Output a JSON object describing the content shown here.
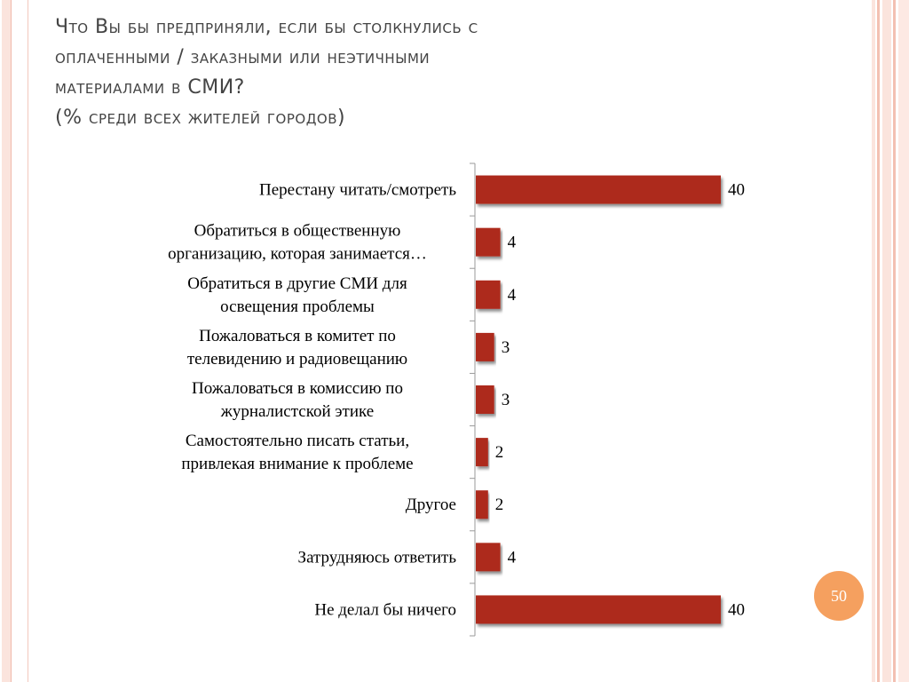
{
  "title": {
    "lines": [
      "Что Вы бы предприняли, если бы столкнулись с",
      "оплаченными / заказными или неэтичными",
      "материалами в СМИ?",
      "(% среди всех жителей городов)"
    ]
  },
  "page_number": "50",
  "colors": {
    "bar": "#ad2a1d",
    "badge": "#f5a05f",
    "text": "#000000",
    "title": "#444444"
  },
  "chart_data": {
    "type": "bar",
    "orientation": "horizontal",
    "categories": [
      [
        "Перестану читать/смотреть"
      ],
      [
        "Обратиться в общественную",
        "организацию, которая занимается…"
      ],
      [
        "Обратиться в другие СМИ для",
        "освещения проблемы"
      ],
      [
        "Пожаловаться в комитет по",
        "телевидению и радиовещанию"
      ],
      [
        "Пожаловаться в комиссию по",
        "журналистской этике"
      ],
      [
        "Самостоятельно писать статьи,",
        "привлекая внимание к проблеме"
      ],
      [
        "Другое"
      ],
      [
        "Затрудняюсь ответить"
      ],
      [
        "Не делал бы ничего"
      ]
    ],
    "values": [
      40,
      4,
      4,
      3,
      3,
      2,
      2,
      4,
      40
    ],
    "data_labels": [
      "40",
      "4",
      "4",
      "3",
      "3",
      "2",
      "2",
      "4",
      "40"
    ],
    "xlim": [
      0,
      40
    ],
    "grid": false,
    "legend": "none"
  }
}
